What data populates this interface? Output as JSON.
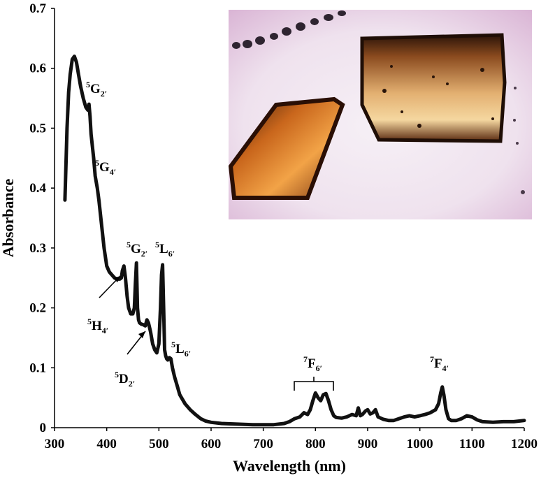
{
  "chart_data": {
    "type": "line",
    "xlabel": "Wavelength (nm)",
    "ylabel": "Absorbance",
    "xlim": [
      300,
      1200
    ],
    "ylim": [
      0,
      0.7
    ],
    "xticks": [
      "300",
      "400",
      "500",
      "600",
      "700",
      "800",
      "900",
      "1000",
      "1100",
      "1200"
    ],
    "yticks": [
      "0",
      "0.1",
      "0.2",
      "0.3",
      "0.4",
      "0.5",
      "0.6",
      "0.7"
    ],
    "grid": false,
    "series": [
      {
        "color": "#111111",
        "x": [
          320,
          322,
          324,
          327,
          330,
          334,
          338,
          342,
          346,
          350,
          355,
          360,
          364,
          366,
          368,
          370,
          375,
          378,
          380,
          382,
          385,
          390,
          395,
          400,
          405,
          410,
          415,
          420,
          425,
          428,
          430,
          433,
          436,
          439,
          442,
          446,
          450,
          453,
          455,
          457,
          459,
          461,
          463,
          466,
          470,
          474,
          477,
          480,
          484,
          488,
          492,
          496,
          500,
          503,
          505,
          507,
          509,
          511,
          513,
          515,
          517,
          520,
          523,
          526,
          530,
          535,
          540,
          550,
          560,
          570,
          580,
          590,
          600,
          620,
          650,
          680,
          700,
          720,
          740,
          750,
          760,
          770,
          778,
          785,
          790,
          795,
          800,
          805,
          810,
          815,
          820,
          825,
          830,
          835,
          840,
          850,
          860,
          870,
          878,
          882,
          886,
          890,
          896,
          900,
          905,
          910,
          915,
          920,
          930,
          940,
          950,
          960,
          970,
          980,
          990,
          1000,
          1010,
          1020,
          1030,
          1036,
          1040,
          1043,
          1046,
          1050,
          1055,
          1060,
          1070,
          1080,
          1090,
          1100,
          1110,
          1120,
          1140,
          1160,
          1180,
          1200
        ],
        "y": [
          0.38,
          0.44,
          0.5,
          0.56,
          0.59,
          0.615,
          0.62,
          0.61,
          0.59,
          0.57,
          0.55,
          0.535,
          0.53,
          0.54,
          0.52,
          0.49,
          0.45,
          0.42,
          0.41,
          0.4,
          0.38,
          0.34,
          0.3,
          0.27,
          0.26,
          0.255,
          0.25,
          0.248,
          0.248,
          0.25,
          0.262,
          0.27,
          0.25,
          0.22,
          0.2,
          0.19,
          0.19,
          0.2,
          0.24,
          0.275,
          0.2,
          0.18,
          0.175,
          0.173,
          0.172,
          0.17,
          0.18,
          0.175,
          0.16,
          0.14,
          0.13,
          0.125,
          0.14,
          0.2,
          0.255,
          0.272,
          0.2,
          0.13,
          0.12,
          0.115,
          0.113,
          0.117,
          0.115,
          0.1,
          0.085,
          0.07,
          0.055,
          0.04,
          0.03,
          0.022,
          0.015,
          0.011,
          0.009,
          0.007,
          0.006,
          0.005,
          0.005,
          0.005,
          0.007,
          0.01,
          0.015,
          0.018,
          0.025,
          0.022,
          0.03,
          0.045,
          0.058,
          0.05,
          0.045,
          0.055,
          0.057,
          0.045,
          0.03,
          0.02,
          0.017,
          0.016,
          0.018,
          0.022,
          0.02,
          0.033,
          0.02,
          0.022,
          0.028,
          0.03,
          0.023,
          0.025,
          0.03,
          0.018,
          0.014,
          0.012,
          0.012,
          0.015,
          0.018,
          0.02,
          0.018,
          0.02,
          0.022,
          0.025,
          0.03,
          0.04,
          0.058,
          0.068,
          0.055,
          0.03,
          0.015,
          0.012,
          0.012,
          0.015,
          0.02,
          0.018,
          0.013,
          0.01,
          0.009,
          0.01,
          0.01,
          0.012
        ]
      }
    ],
    "annotations": [
      {
        "id": "5G2-high",
        "sup": "5",
        "main": "G",
        "sub": "2′"
      },
      {
        "id": "5G4",
        "sup": "5",
        "main": "G",
        "sub": "4′"
      },
      {
        "id": "5G2-low",
        "sup": "5",
        "main": "G",
        "sub": "2′"
      },
      {
        "id": "5L6-high",
        "sup": "5",
        "main": "L",
        "sub": "6′"
      },
      {
        "id": "5H4",
        "sup": "5",
        "main": "H",
        "sub": "4′"
      },
      {
        "id": "5L6-low",
        "sup": "5",
        "main": "L",
        "sub": "6′"
      },
      {
        "id": "5D2",
        "sup": "5",
        "main": "D",
        "sub": "2′"
      },
      {
        "id": "7F6",
        "sup": "7",
        "main": "F",
        "sub": "6′"
      },
      {
        "id": "7F4",
        "sup": "7",
        "main": "F",
        "sub": "4′"
      }
    ],
    "inset": {
      "content": "crystal-photo"
    }
  }
}
